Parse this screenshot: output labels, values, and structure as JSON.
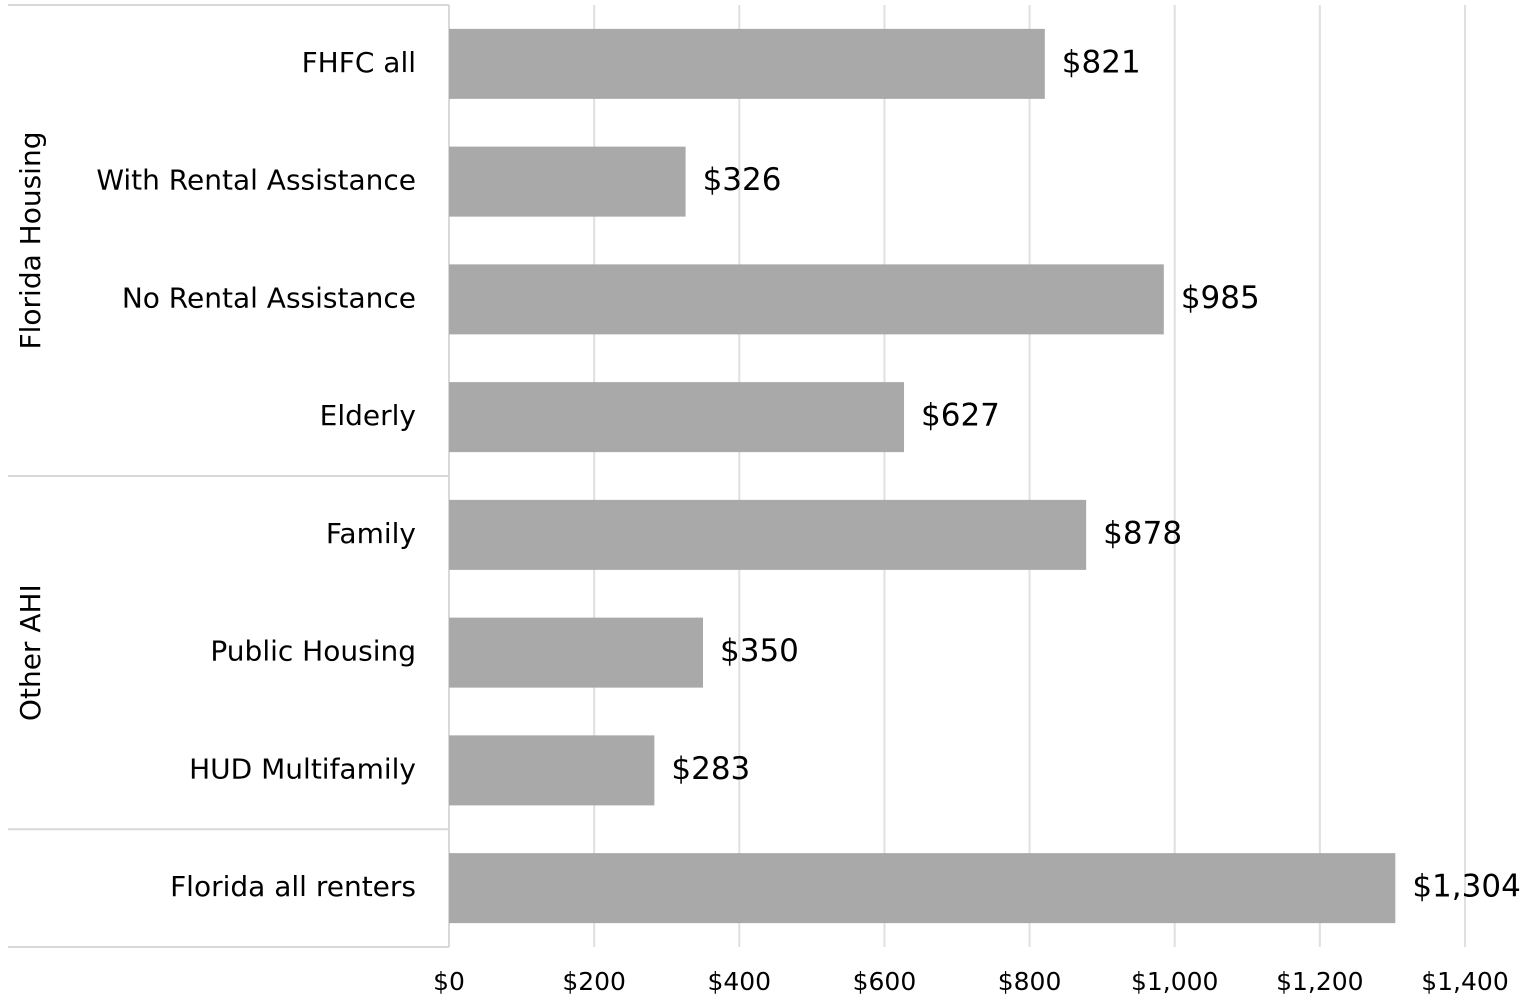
{
  "chart_data": {
    "type": "bar",
    "orientation": "horizontal",
    "categories": [
      "FHFC all",
      "With Rental Assistance",
      "No Rental Assistance",
      "Elderly",
      "Family",
      "Public Housing",
      "HUD Multifamily",
      "Florida all renters"
    ],
    "groups": [
      {
        "name": "Florida Housing",
        "size": 4
      },
      {
        "name": "Other AHI",
        "size": 3
      }
    ],
    "values": [
      821,
      326,
      985,
      627,
      878,
      350,
      283,
      1304
    ],
    "value_labels": [
      "$821",
      "$326",
      "$985",
      "$627",
      "$878",
      "$350",
      "$283",
      "$1,304"
    ],
    "color": "#a9a9a9",
    "xlim": [
      0,
      1400
    ],
    "xticks": [
      {
        "value": 0,
        "label": "$0"
      },
      {
        "value": 200,
        "label": "$200"
      },
      {
        "value": 400,
        "label": "$400"
      },
      {
        "value": 600,
        "label": "$600"
      },
      {
        "value": 800,
        "label": "$800"
      },
      {
        "value": 1000,
        "label": "$1,000"
      },
      {
        "value": 1200,
        "label": "$1,200"
      },
      {
        "value": 1400,
        "label": "$1,400"
      }
    ],
    "grid": true
  }
}
